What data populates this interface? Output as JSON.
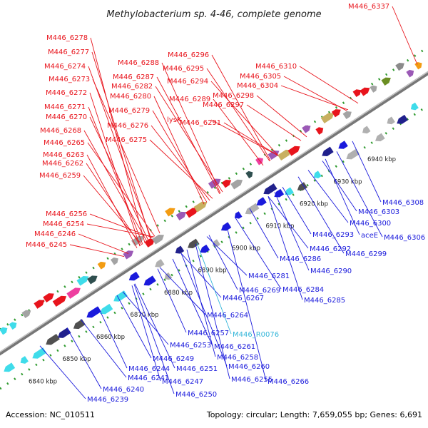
{
  "title": "Methylobacterium sp. 4-46, complete genome",
  "footer": {
    "accession": "Accession: NC_010511",
    "summary": "Topology: circular; Length: 7,659,055 bp; Genes: 6,691"
  },
  "colors": {
    "forward_strand": "#e8141c",
    "reverse_strand": "#1a1adc",
    "rna": "#33b5d9",
    "backbone": "#8a8a8a",
    "tick": "#2e9a2e"
  },
  "scale_ticks": [
    {
      "kbp": 6840,
      "label": "6840 kbp"
    },
    {
      "kbp": 6850,
      "label": "6850 kbp"
    },
    {
      "kbp": 6860,
      "label": "6860 kbp"
    },
    {
      "kbp": 6870,
      "label": "6870 kbp"
    },
    {
      "kbp": 6880,
      "label": "6880 kbp"
    },
    {
      "kbp": 6890,
      "label": "6890 kbp"
    },
    {
      "kbp": 6900,
      "label": "6900 kbp"
    },
    {
      "kbp": 6910,
      "label": "6910 kbp"
    },
    {
      "kbp": 6920,
      "label": "6920 kbp"
    },
    {
      "kbp": 6930,
      "label": "6930 kbp"
    },
    {
      "kbp": 6940,
      "label": "6940 kbp"
    }
  ],
  "forward_genes": [
    "M446_6337",
    "M446_6278",
    "M446_6277",
    "M446_6274",
    "M446_6273",
    "M446_6272",
    "M446_6271",
    "M446_6270",
    "M446_6268",
    "M446_6265",
    "M446_6263",
    "M446_6262",
    "M446_6259",
    "M446_6256",
    "M446_6254",
    "M446_6246",
    "M446_6245",
    "M446_6288",
    "M446_6287",
    "M446_6282",
    "M446_6280",
    "M446_6279",
    "M446_6276",
    "M446_6275",
    "lysK",
    "M446_6289",
    "M446_6291",
    "M446_6296",
    "M446_6295",
    "M446_6294",
    "M446_6298",
    "M446_6297",
    "M446_6310",
    "M446_6305",
    "M446_6304"
  ],
  "reverse_genes": [
    "M446_6308",
    "M446_6303",
    "M446_6300",
    "M446_6306",
    "M446_6293",
    "aceE",
    "M446_6292",
    "M446_6299",
    "M446_6286",
    "M446_6290",
    "M446_6281",
    "M446_6284",
    "M446_6269",
    "M446_6285",
    "M446_6267",
    "M446_6264",
    "M446_6257",
    "M446_R0076",
    "M446_6261",
    "M446_6253",
    "M446_6258",
    "M446_6249",
    "M446_6251",
    "M446_6260",
    "M446_6244",
    "M446_6255",
    "M446_6266",
    "M446_6241",
    "M446_6247",
    "M446_6240",
    "M446_6250",
    "M446_6239"
  ]
}
